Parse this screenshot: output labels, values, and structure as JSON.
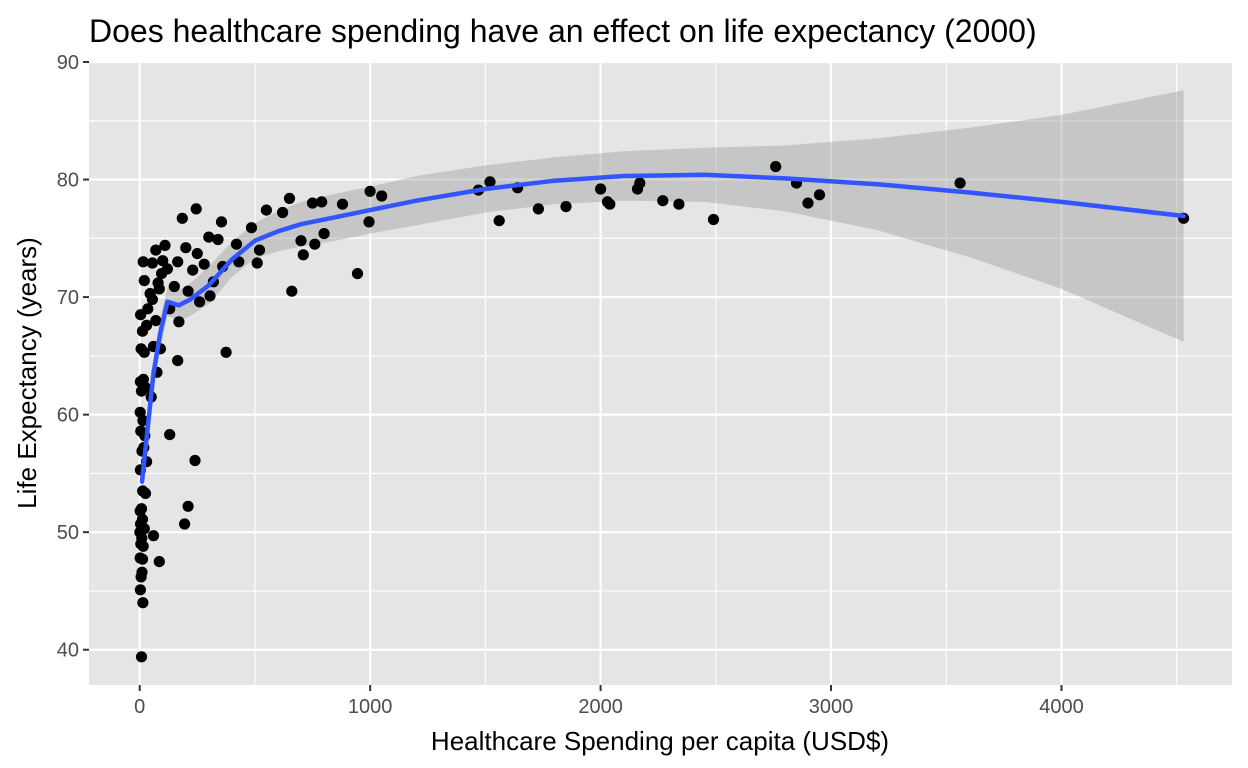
{
  "chart_data": {
    "type": "scatter",
    "title": "Does healthcare spending have an effect on life expectancy (2000)",
    "xlabel": "Healthcare Spending per capita (USD$)",
    "ylabel": "Life Expectancy (years)",
    "xlim": [
      -220,
      4740
    ],
    "ylim": [
      37,
      90
    ],
    "xticks": [
      0,
      1000,
      2000,
      3000,
      4000
    ],
    "xtick_labels": [
      "0",
      "1000",
      "2000",
      "3000",
      "4000"
    ],
    "yticks": [
      40,
      50,
      60,
      70,
      80,
      90
    ],
    "ytick_labels": [
      "40",
      "50",
      "60",
      "70",
      "80",
      "90"
    ],
    "grid": true,
    "legend": "none",
    "colors": {
      "panel": "#e5e5e5",
      "grid": "#ffffff",
      "points": "#000000",
      "smooth_line": "#3355ff",
      "confidence_band": "#999999"
    },
    "points": [
      {
        "x": 8,
        "y": 39.4
      },
      {
        "x": 14,
        "y": 44.0
      },
      {
        "x": 3,
        "y": 45.1
      },
      {
        "x": 6,
        "y": 46.2
      },
      {
        "x": 10,
        "y": 46.6
      },
      {
        "x": 2,
        "y": 47.8
      },
      {
        "x": 12,
        "y": 47.7
      },
      {
        "x": 5,
        "y": 49.0
      },
      {
        "x": 15,
        "y": 48.8
      },
      {
        "x": 1,
        "y": 50.0
      },
      {
        "x": 9,
        "y": 49.5
      },
      {
        "x": 20,
        "y": 50.3
      },
      {
        "x": 4,
        "y": 50.7
      },
      {
        "x": 12,
        "y": 51.1
      },
      {
        "x": 2,
        "y": 51.8
      },
      {
        "x": 8,
        "y": 52.0
      },
      {
        "x": 13,
        "y": 53.5
      },
      {
        "x": 25,
        "y": 53.3
      },
      {
        "x": 3,
        "y": 55.3
      },
      {
        "x": 10,
        "y": 56.9
      },
      {
        "x": 18,
        "y": 57.2
      },
      {
        "x": 30,
        "y": 56.0
      },
      {
        "x": 5,
        "y": 58.6
      },
      {
        "x": 22,
        "y": 58.2
      },
      {
        "x": 2,
        "y": 60.2
      },
      {
        "x": 14,
        "y": 59.5
      },
      {
        "x": 8,
        "y": 62.0
      },
      {
        "x": 25,
        "y": 62.3
      },
      {
        "x": 3,
        "y": 62.8
      },
      {
        "x": 16,
        "y": 63.0
      },
      {
        "x": 6,
        "y": 65.6
      },
      {
        "x": 20,
        "y": 65.3
      },
      {
        "x": 12,
        "y": 67.1
      },
      {
        "x": 30,
        "y": 67.6
      },
      {
        "x": 4,
        "y": 68.5
      },
      {
        "x": 35,
        "y": 69.0
      },
      {
        "x": 20,
        "y": 71.4
      },
      {
        "x": 45,
        "y": 70.3
      },
      {
        "x": 15,
        "y": 73.0
      },
      {
        "x": 55,
        "y": 72.9
      },
      {
        "x": 60,
        "y": 49.7
      },
      {
        "x": 85,
        "y": 47.5
      },
      {
        "x": 50,
        "y": 61.5
      },
      {
        "x": 75,
        "y": 63.6
      },
      {
        "x": 60,
        "y": 65.8
      },
      {
        "x": 90,
        "y": 65.6
      },
      {
        "x": 70,
        "y": 68.0
      },
      {
        "x": 55,
        "y": 69.8
      },
      {
        "x": 80,
        "y": 71.2
      },
      {
        "x": 95,
        "y": 72.0
      },
      {
        "x": 70,
        "y": 74.0
      },
      {
        "x": 110,
        "y": 74.4
      },
      {
        "x": 100,
        "y": 73.1
      },
      {
        "x": 120,
        "y": 72.4
      },
      {
        "x": 85,
        "y": 70.7
      },
      {
        "x": 130,
        "y": 69.0
      },
      {
        "x": 130,
        "y": 58.3
      },
      {
        "x": 165,
        "y": 64.6
      },
      {
        "x": 170,
        "y": 67.9
      },
      {
        "x": 150,
        "y": 70.9
      },
      {
        "x": 165,
        "y": 73.0
      },
      {
        "x": 185,
        "y": 76.7
      },
      {
        "x": 200,
        "y": 74.2
      },
      {
        "x": 195,
        "y": 50.7
      },
      {
        "x": 210,
        "y": 52.2
      },
      {
        "x": 240,
        "y": 56.1
      },
      {
        "x": 210,
        "y": 70.5
      },
      {
        "x": 230,
        "y": 72.3
      },
      {
        "x": 245,
        "y": 77.5
      },
      {
        "x": 250,
        "y": 73.7
      },
      {
        "x": 260,
        "y": 69.6
      },
      {
        "x": 280,
        "y": 72.8
      },
      {
        "x": 300,
        "y": 75.1
      },
      {
        "x": 305,
        "y": 70.1
      },
      {
        "x": 320,
        "y": 71.3
      },
      {
        "x": 340,
        "y": 74.9
      },
      {
        "x": 355,
        "y": 76.4
      },
      {
        "x": 360,
        "y": 72.6
      },
      {
        "x": 375,
        "y": 65.3
      },
      {
        "x": 420,
        "y": 74.5
      },
      {
        "x": 430,
        "y": 73.0
      },
      {
        "x": 485,
        "y": 75.9
      },
      {
        "x": 510,
        "y": 72.9
      },
      {
        "x": 520,
        "y": 74.0
      },
      {
        "x": 550,
        "y": 77.4
      },
      {
        "x": 620,
        "y": 77.2
      },
      {
        "x": 650,
        "y": 78.4
      },
      {
        "x": 660,
        "y": 70.5
      },
      {
        "x": 700,
        "y": 74.8
      },
      {
        "x": 710,
        "y": 73.6
      },
      {
        "x": 750,
        "y": 78.0
      },
      {
        "x": 760,
        "y": 74.5
      },
      {
        "x": 790,
        "y": 78.1
      },
      {
        "x": 800,
        "y": 75.4
      },
      {
        "x": 880,
        "y": 77.9
      },
      {
        "x": 945,
        "y": 72.0
      },
      {
        "x": 995,
        "y": 76.4
      },
      {
        "x": 1000,
        "y": 79.0
      },
      {
        "x": 1050,
        "y": 78.6
      },
      {
        "x": 1470,
        "y": 79.1
      },
      {
        "x": 1520,
        "y": 79.8
      },
      {
        "x": 1560,
        "y": 76.5
      },
      {
        "x": 1640,
        "y": 79.3
      },
      {
        "x": 1730,
        "y": 77.5
      },
      {
        "x": 1850,
        "y": 77.7
      },
      {
        "x": 2000,
        "y": 79.2
      },
      {
        "x": 2030,
        "y": 78.1
      },
      {
        "x": 2040,
        "y": 77.9
      },
      {
        "x": 2160,
        "y": 79.2
      },
      {
        "x": 2170,
        "y": 79.7
      },
      {
        "x": 2270,
        "y": 78.2
      },
      {
        "x": 2340,
        "y": 77.9
      },
      {
        "x": 2490,
        "y": 76.6
      },
      {
        "x": 2760,
        "y": 81.1
      },
      {
        "x": 2850,
        "y": 79.7
      },
      {
        "x": 2900,
        "y": 78.0
      },
      {
        "x": 2950,
        "y": 78.7
      },
      {
        "x": 3560,
        "y": 79.7
      },
      {
        "x": 4530,
        "y": 76.7
      }
    ],
    "smooth_line": [
      {
        "x": 10,
        "y": 54.3
      },
      {
        "x": 30,
        "y": 58.0
      },
      {
        "x": 60,
        "y": 63.5
      },
      {
        "x": 90,
        "y": 67.0
      },
      {
        "x": 120,
        "y": 69.6
      },
      {
        "x": 170,
        "y": 69.3
      },
      {
        "x": 220,
        "y": 69.8
      },
      {
        "x": 300,
        "y": 71.0
      },
      {
        "x": 400,
        "y": 73.2
      },
      {
        "x": 500,
        "y": 74.8
      },
      {
        "x": 600,
        "y": 75.6
      },
      {
        "x": 700,
        "y": 76.2
      },
      {
        "x": 850,
        "y": 76.8
      },
      {
        "x": 1000,
        "y": 77.4
      },
      {
        "x": 1200,
        "y": 78.2
      },
      {
        "x": 1500,
        "y": 79.2
      },
      {
        "x": 1800,
        "y": 79.9
      },
      {
        "x": 2100,
        "y": 80.3
      },
      {
        "x": 2450,
        "y": 80.4
      },
      {
        "x": 2800,
        "y": 80.1
      },
      {
        "x": 3200,
        "y": 79.6
      },
      {
        "x": 3600,
        "y": 78.9
      },
      {
        "x": 4000,
        "y": 78.1
      },
      {
        "x": 4530,
        "y": 76.9
      }
    ],
    "confidence_band": {
      "x": [
        10,
        30,
        60,
        90,
        120,
        170,
        220,
        300,
        400,
        500,
        600,
        700,
        850,
        1000,
        1200,
        1500,
        1800,
        2100,
        2450,
        2800,
        3200,
        3600,
        4000,
        4530
      ],
      "upper": [
        55.5,
        59.0,
        64.8,
        68.3,
        70.8,
        70.6,
        71.2,
        72.6,
        74.7,
        76.3,
        77.3,
        78.1,
        78.8,
        79.4,
        80.3,
        81.2,
        81.9,
        82.4,
        82.7,
        82.9,
        83.5,
        84.4,
        85.5,
        87.6
      ],
      "lower": [
        53.1,
        57.0,
        62.2,
        65.7,
        68.4,
        68.0,
        68.4,
        69.4,
        71.7,
        73.3,
        73.9,
        74.3,
        74.8,
        75.4,
        76.1,
        77.2,
        77.9,
        78.2,
        78.1,
        77.3,
        75.7,
        73.4,
        70.7,
        66.2
      ]
    }
  }
}
